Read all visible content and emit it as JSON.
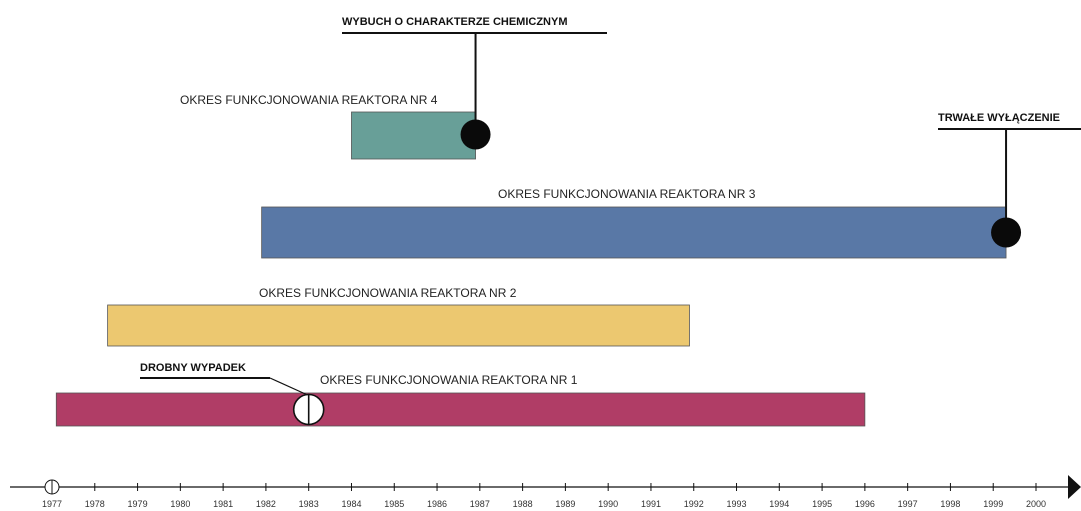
{
  "chart_data": {
    "type": "timeline",
    "title": "",
    "xlabel": "",
    "ylabel": "",
    "xlim": [
      1977,
      2000
    ],
    "ticks": [
      "1977",
      "1978",
      "1979",
      "1980",
      "1981",
      "1982",
      "1983",
      "1984",
      "1985",
      "1986",
      "1987",
      "1988",
      "1989",
      "1990",
      "1991",
      "1992",
      "1993",
      "1994",
      "1995",
      "1996",
      "1997",
      "1998",
      "1999",
      "2000"
    ],
    "bars": [
      {
        "label": "OKRES FUNKCJONOWANIA REAKTORA NR 1",
        "start": 1977.1,
        "end": 1996.0,
        "color": "#b03d66"
      },
      {
        "label": "OKRES FUNKCJONOWANIA REAKTORA NR 2",
        "start": 1978.3,
        "end": 1991.9,
        "color": "#ecc870"
      },
      {
        "label": "OKRES FUNKCJONOWANIA REAKTORA NR 3",
        "start": 1981.9,
        "end": 1999.3,
        "color": "#5978a6"
      },
      {
        "label": "OKRES FUNKCJONOWANIA REAKTORA NR 4",
        "start": 1984.0,
        "end": 1986.9,
        "color": "#689f98"
      }
    ],
    "events": [
      {
        "label": "DROBNY WYPADEK",
        "year": 1983.0,
        "reactor": 1,
        "marker": "open"
      },
      {
        "label": "WYBUCH O CHARAKTERZE CHEMICZNYM",
        "year": 1986.9,
        "reactor": 4,
        "marker": "filled"
      },
      {
        "label": "TRWAŁE WYŁĄCZENIE",
        "year": 1999.3,
        "reactor": 3,
        "marker": "filled"
      }
    ]
  }
}
